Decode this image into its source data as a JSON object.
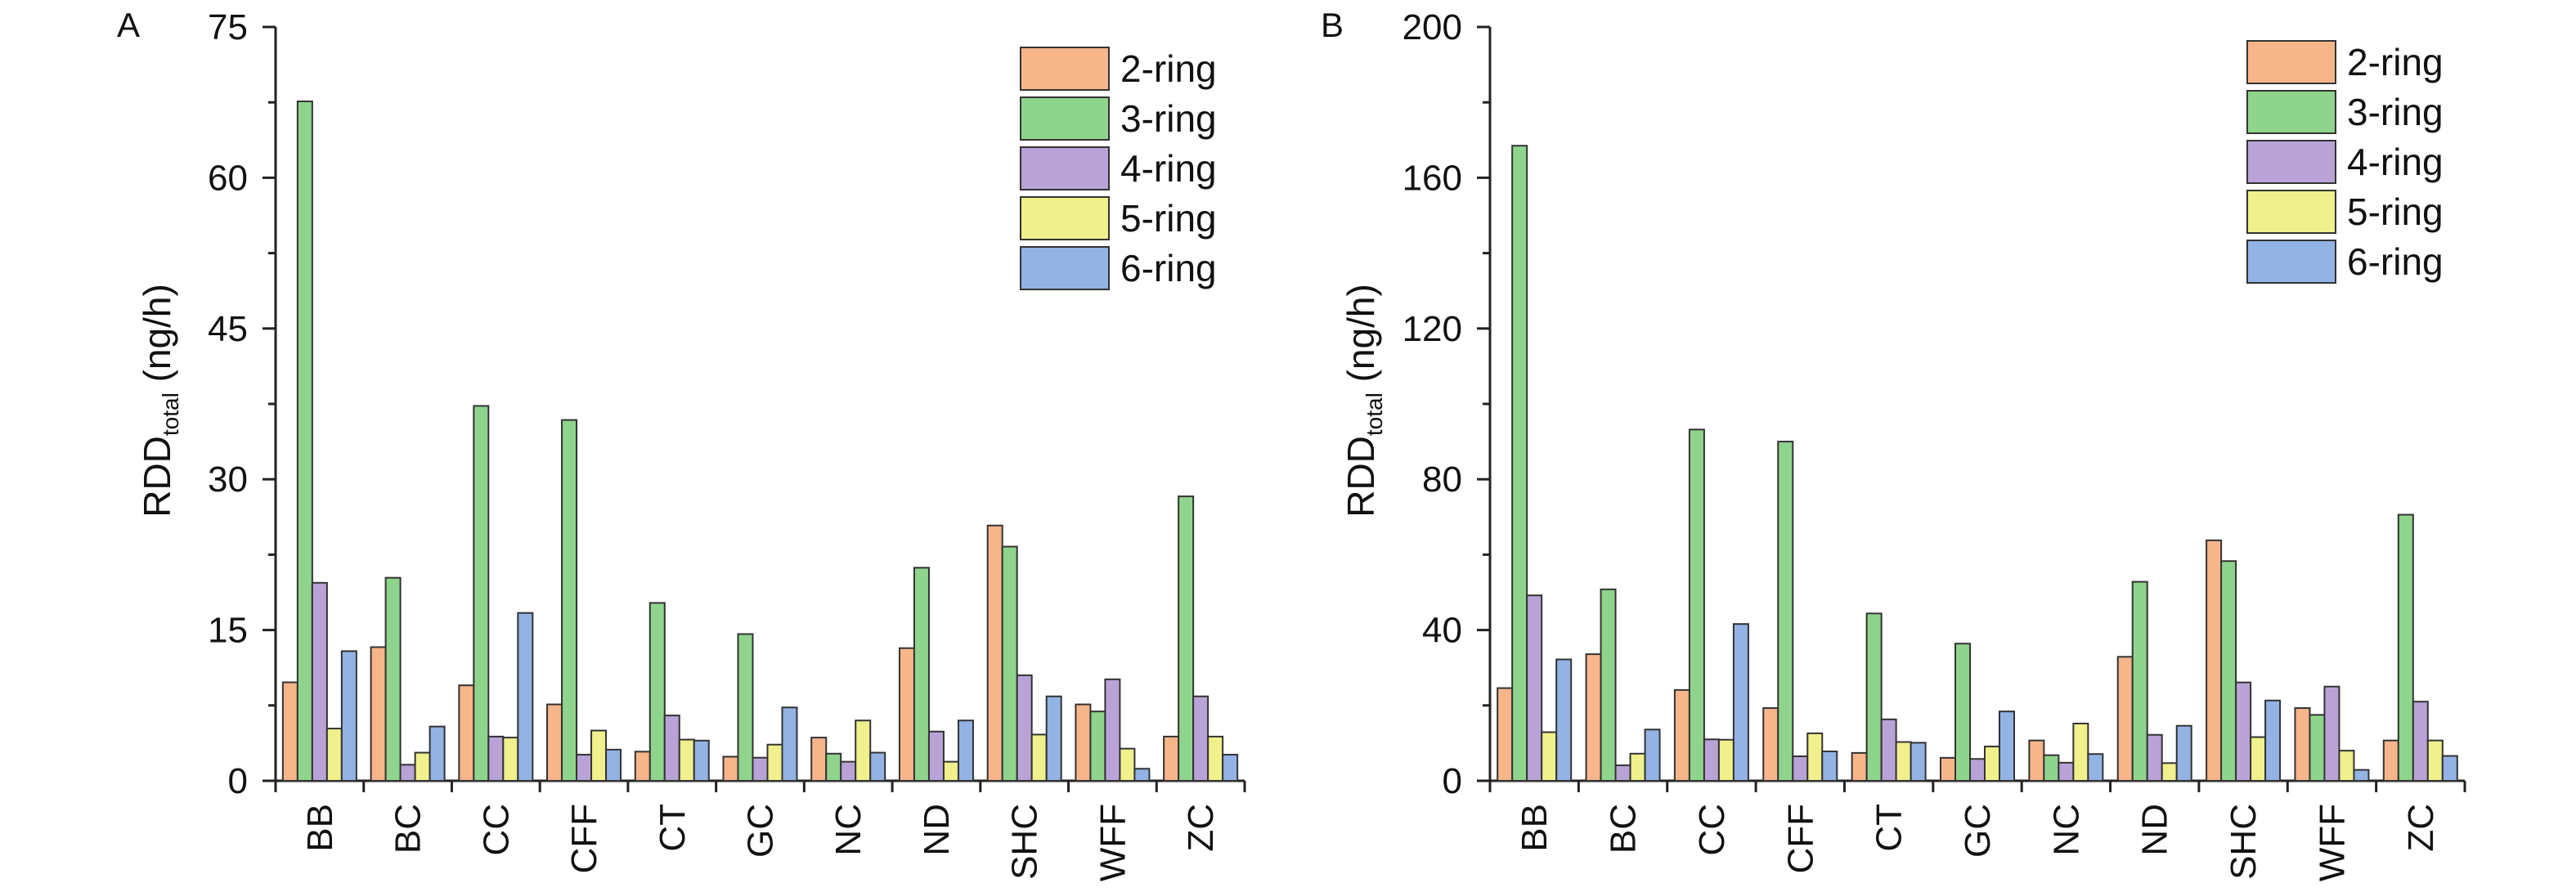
{
  "colors": {
    "2-ring": "#F7B58A",
    "3-ring": "#8FD48C",
    "4-ring": "#B9A3D6",
    "5-ring": "#F0F08C",
    "6-ring": "#93B3E5",
    "axis": "#222222"
  },
  "chart_data": [
    {
      "panel": "A",
      "type": "bar",
      "title": "",
      "xlabel": "",
      "ylabel_main": "RDD",
      "ylabel_sub": "total",
      "ylabel_unit": " (ng/h)",
      "ylim": [
        0,
        75
      ],
      "yticks": [
        0,
        15,
        30,
        45,
        60,
        75
      ],
      "ytick_labels": [
        "0",
        "15",
        "30",
        "45",
        "60",
        "75"
      ],
      "legend_position": "top-right",
      "categories": [
        "BB",
        "BC",
        "CC",
        "CFF",
        "CT",
        "GC",
        "NC",
        "ND",
        "SHC",
        "WFF",
        "ZC"
      ],
      "series": [
        {
          "name": "2-ring",
          "values": [
            9.8,
            13.3,
            9.5,
            7.6,
            2.9,
            2.4,
            4.3,
            13.2,
            25.4,
            7.6,
            4.4
          ]
        },
        {
          "name": "3-ring",
          "values": [
            67.6,
            20.2,
            37.3,
            35.9,
            17.7,
            14.6,
            2.7,
            21.2,
            23.3,
            6.9,
            28.3
          ]
        },
        {
          "name": "4-ring",
          "values": [
            19.7,
            1.6,
            4.4,
            2.6,
            6.5,
            2.3,
            1.9,
            4.9,
            10.5,
            10.1,
            8.4
          ]
        },
        {
          "name": "5-ring",
          "values": [
            5.2,
            2.8,
            4.3,
            5.0,
            4.1,
            3.6,
            6.0,
            1.9,
            4.6,
            3.2,
            4.4
          ]
        },
        {
          "name": "6-ring",
          "values": [
            12.9,
            5.4,
            16.7,
            3.1,
            4.0,
            7.3,
            2.8,
            6.0,
            8.4,
            1.2,
            2.6
          ]
        }
      ]
    },
    {
      "panel": "B",
      "type": "bar",
      "title": "",
      "xlabel": "",
      "ylabel_main": "RDD",
      "ylabel_sub": "total",
      "ylabel_unit": " (ng/h)",
      "ylim": [
        0,
        200
      ],
      "yticks": [
        0,
        40,
        80,
        120,
        160,
        200
      ],
      "ytick_labels": [
        "0",
        "40",
        "80",
        "120",
        "160",
        "200"
      ],
      "legend_position": "top-right",
      "categories": [
        "BB",
        "BC",
        "CC",
        "CFF",
        "CT",
        "GC",
        "NC",
        "ND",
        "SHC",
        "WFF",
        "ZC"
      ],
      "series": [
        {
          "name": "2-ring",
          "values": [
            24.6,
            33.6,
            24.1,
            19.3,
            7.4,
            6.1,
            10.7,
            32.9,
            63.8,
            19.3,
            10.7
          ]
        },
        {
          "name": "3-ring",
          "values": [
            168.5,
            50.8,
            93.2,
            90.0,
            44.4,
            36.4,
            6.8,
            52.8,
            58.3,
            17.5,
            70.6
          ]
        },
        {
          "name": "4-ring",
          "values": [
            49.2,
            4.1,
            11.0,
            6.5,
            16.3,
            5.8,
            4.8,
            12.2,
            26.1,
            25.0,
            21.0
          ]
        },
        {
          "name": "5-ring",
          "values": [
            12.9,
            7.2,
            10.9,
            12.6,
            10.3,
            9.1,
            15.2,
            4.7,
            11.6,
            8.0,
            10.7
          ]
        },
        {
          "name": "6-ring",
          "values": [
            32.2,
            13.6,
            41.6,
            7.8,
            10.1,
            18.4,
            7.1,
            14.6,
            21.3,
            2.9,
            6.6
          ]
        }
      ]
    }
  ]
}
